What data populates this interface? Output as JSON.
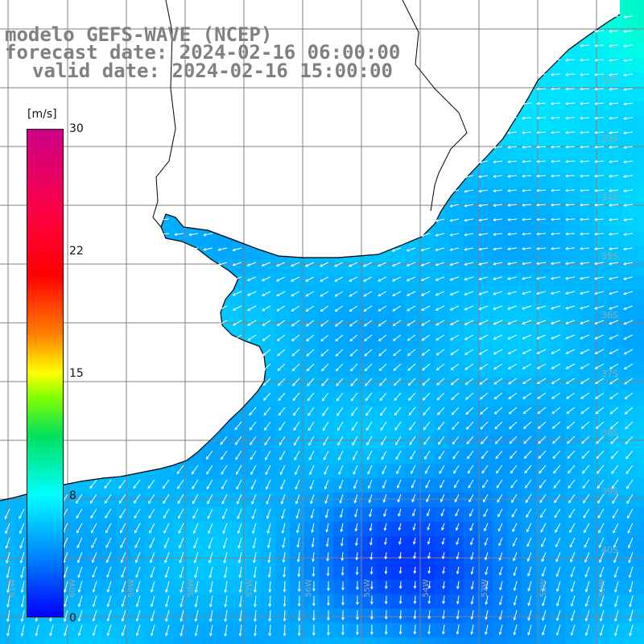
{
  "title": {
    "line1": "modelo GEFS-WAVE (NCEP)",
    "line2": "forecast date: 2024-02-16 06:00:00",
    "line3": "valid date: 2024-02-16 15:00:00"
  },
  "colorbar": {
    "unit": "[m/s]",
    "ticks": [
      "30",
      "22",
      "15",
      "8",
      "0"
    ],
    "min": 0,
    "max": 30
  },
  "lat_labels": [
    "32S",
    "33S",
    "34S",
    "35S",
    "36S",
    "37S",
    "38S",
    "39S",
    "40S"
  ],
  "lon_labels": [
    "61W",
    "60W",
    "59W",
    "58W",
    "57W",
    "56W",
    "55W",
    "54W",
    "53W",
    "52W",
    "51W"
  ],
  "colors": {
    "land": "#ffffff",
    "coast": "#000000",
    "grid": "#808080",
    "arrows": "#ffffff"
  }
}
